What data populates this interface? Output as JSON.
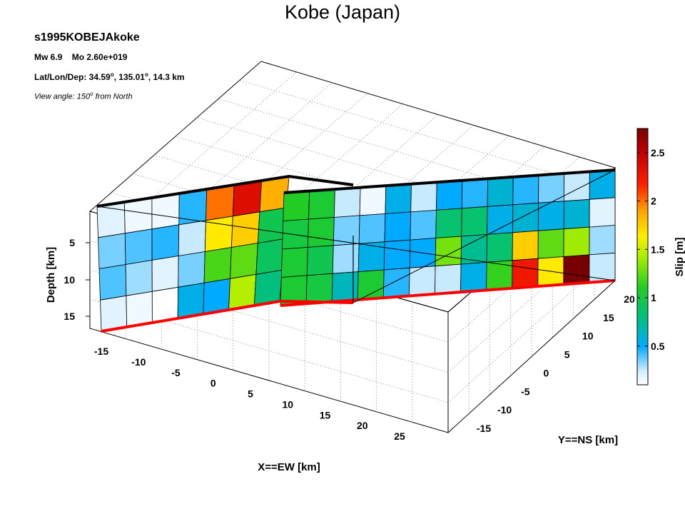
{
  "title": "Kobe (Japan)",
  "event_id": "s1995KOBEJAkoke",
  "magnitude": "Mw 6.9",
  "moment": "Mo 2.60e+019",
  "location": {
    "prefix": "Lat/Lon/Dep: ",
    "lat": "34.59",
    "lon": "135.01",
    "depth": "14.3 km",
    "degree_mark": "o"
  },
  "view": {
    "prefix": "View angle: 150",
    "degree_mark": "o",
    "suffix": " from North"
  },
  "chart_data": {
    "type": "3d-fault-slip",
    "title": "Kobe (Japan)",
    "xlabel": "X==EW [km]",
    "ylabel": "Y==NS [km]",
    "zlabel": "Depth [km]",
    "x_ticks": [
      "-15",
      "-10",
      "-5",
      "0",
      "5",
      "10",
      "15",
      "20",
      "25"
    ],
    "y_ticks": [
      "-15",
      "-10",
      "-5",
      "0",
      "5",
      "10",
      "15",
      "20"
    ],
    "z_ticks": [
      "5",
      "10",
      "15"
    ],
    "colorbar": {
      "label": "Slip [m]",
      "ticks": [
        "0.5",
        "1",
        "1.5",
        "2",
        "2.5"
      ],
      "tick_values": [
        0.5,
        1,
        1.5,
        2,
        2.5
      ],
      "range": [
        0.1,
        2.75
      ]
    },
    "segments": [
      {
        "name": "",
        "slip_m": [
          [
            0.2,
            0.15,
            0.15,
            0.45,
            2.0,
            2.35,
            1.85
          ],
          [
            0.35,
            0.4,
            0.45,
            0.25,
            1.65,
            1.75,
            0.95
          ],
          [
            0.4,
            0.3,
            0.2,
            0.35,
            1.2,
            1.25,
            0.9
          ],
          [
            0.2,
            0.15,
            0.1,
            0.55,
            0.5,
            1.45,
            0.8
          ]
        ]
      },
      {
        "name": "",
        "slip_m": [
          [
            1.1,
            1.05,
            0.25,
            0.15,
            0.55,
            0.25,
            0.5,
            0.45,
            0.6,
            0.45,
            0.35,
            0.25,
            0.55
          ],
          [
            1.0,
            1.05,
            0.35,
            0.4,
            0.5,
            0.4,
            0.85,
            0.85,
            0.55,
            0.6,
            0.55,
            0.6,
            0.2
          ],
          [
            1.05,
            0.95,
            0.3,
            0.55,
            0.5,
            0.5,
            1.3,
            0.75,
            0.85,
            1.75,
            1.25,
            1.4,
            0.3
          ],
          [
            1.05,
            1.0,
            0.65,
            1.05,
            0.45,
            0.25,
            0.25,
            0.55,
            1.15,
            2.25,
            1.65,
            2.75,
            0.25
          ]
        ]
      }
    ]
  }
}
